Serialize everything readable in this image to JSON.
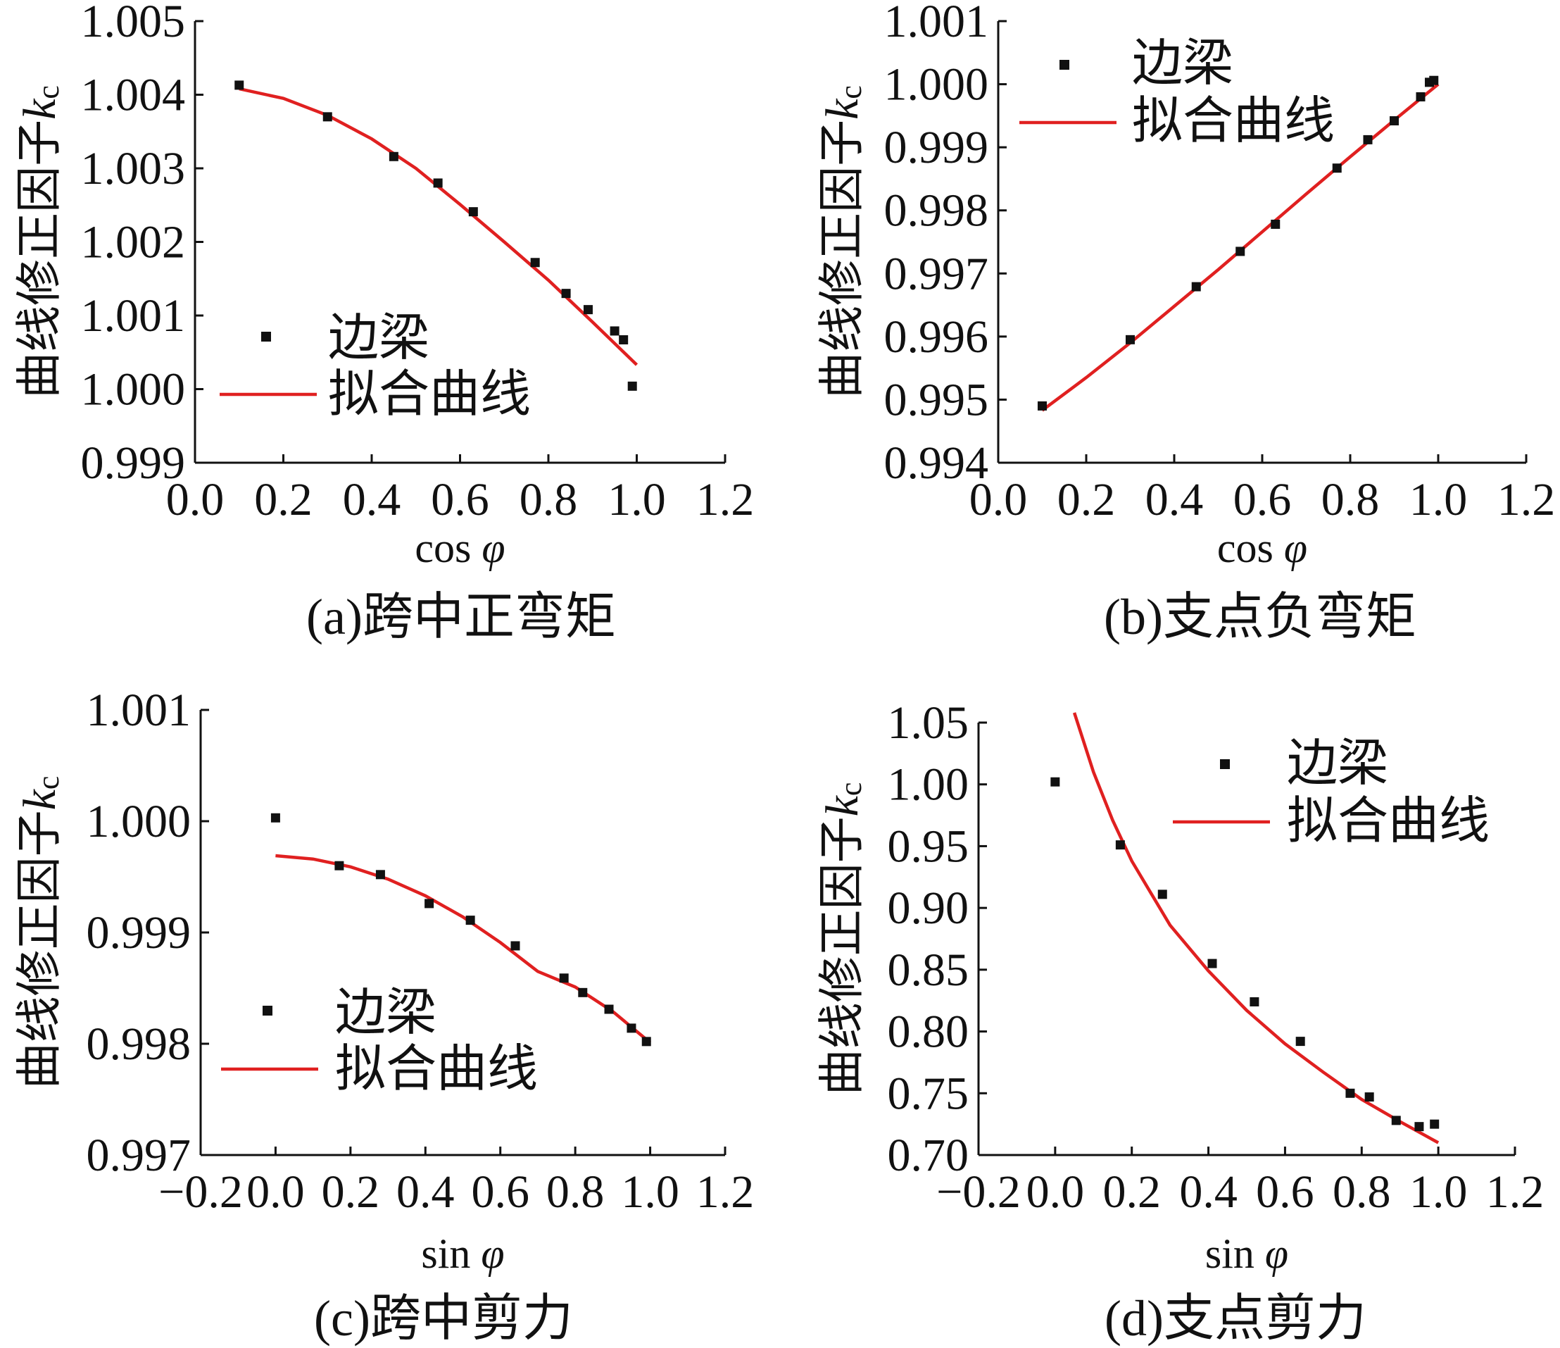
{
  "colors": {
    "marker": "#111111",
    "fit_line": "#e02020",
    "axis": "#111111",
    "background": "#ffffff"
  },
  "chart_data": [
    {
      "type": "scatter",
      "caption": "(a)跨中正弯矩",
      "xlabel": "cos φ",
      "ylabel": "曲线修正因子",
      "ylabel_symbol": "k",
      "ylabel_subscript": "c",
      "xlim": [
        0.0,
        1.2
      ],
      "ylim": [
        0.999,
        1.005
      ],
      "xticks": [
        "0.0",
        "0.2",
        "0.4",
        "0.6",
        "0.8",
        "1.0",
        "1.2"
      ],
      "yticks": [
        "0.999",
        "1.000",
        "1.001",
        "1.002",
        "1.003",
        "1.004",
        "1.005"
      ],
      "legend_position": "bottom-left",
      "series": [
        {
          "name": "边梁",
          "kind": "points",
          "x": [
            0.1,
            0.3,
            0.45,
            0.55,
            0.63,
            0.77,
            0.84,
            0.89,
            0.95,
            0.97,
            0.99
          ],
          "y": [
            1.00413,
            1.0037,
            1.00316,
            1.0028,
            1.00241,
            1.00172,
            1.0013,
            1.00108,
            1.00079,
            1.00067,
            1.00004
          ]
        },
        {
          "name": "拟合曲线",
          "kind": "line",
          "x": [
            0.1,
            0.2,
            0.3,
            0.4,
            0.5,
            0.6,
            0.7,
            0.8,
            0.9,
            1.0
          ],
          "y": [
            1.00408,
            1.00395,
            1.00372,
            1.0034,
            1.003,
            1.00251,
            1.002,
            1.00148,
            1.00091,
            1.00033
          ]
        }
      ]
    },
    {
      "type": "scatter",
      "caption": "(b)支点负弯矩",
      "xlabel": "cos φ",
      "ylabel": "曲线修正因子",
      "ylabel_symbol": "k",
      "ylabel_subscript": "c",
      "xlim": [
        0.0,
        1.2
      ],
      "ylim": [
        0.994,
        1.001
      ],
      "xticks": [
        "0.0",
        "0.2",
        "0.4",
        "0.6",
        "0.8",
        "1.0",
        "1.2"
      ],
      "yticks": [
        "0.994",
        "0.995",
        "0.996",
        "0.997",
        "0.998",
        "0.999",
        "1.000",
        "1.001"
      ],
      "legend_position": "top-left",
      "series": [
        {
          "name": "边梁",
          "kind": "points",
          "x": [
            0.1,
            0.3,
            0.45,
            0.55,
            0.63,
            0.77,
            0.84,
            0.9,
            0.96,
            0.98,
            0.99
          ],
          "y": [
            0.9949,
            0.99595,
            0.99679,
            0.99735,
            0.99778,
            0.99867,
            0.99912,
            0.99942,
            0.9998,
            1.00003,
            1.00006
          ]
        },
        {
          "name": "拟合曲线",
          "kind": "line",
          "x": [
            0.1,
            0.2,
            0.3,
            0.4,
            0.5,
            0.6,
            0.7,
            0.8,
            0.9,
            1.0
          ],
          "y": [
            0.99483,
            0.99535,
            0.9959,
            0.99648,
            0.99706,
            0.99766,
            0.99826,
            0.99885,
            0.99943,
            1.0
          ]
        }
      ]
    },
    {
      "type": "scatter",
      "caption": "(c)跨中剪力",
      "xlabel": "sin φ",
      "ylabel": "曲线修正因子",
      "ylabel_symbol": "k",
      "ylabel_subscript": "c",
      "xlim": [
        -0.2,
        1.2
      ],
      "ylim": [
        0.997,
        1.001
      ],
      "xticks": [
        "−0.2",
        "0.0",
        "0.2",
        "0.4",
        "0.6",
        "0.8",
        "1.0",
        "1.2"
      ],
      "yticks": [
        "0.997",
        "0.998",
        "0.999",
        "1.000",
        "1.001"
      ],
      "legend_position": "bottom-left",
      "series": [
        {
          "name": "边梁",
          "kind": "points",
          "x": [
            0.0,
            0.17,
            0.28,
            0.41,
            0.52,
            0.64,
            0.77,
            0.82,
            0.89,
            0.95,
            0.99
          ],
          "y": [
            1.00003,
            0.9996,
            0.99952,
            0.99926,
            0.99911,
            0.99888,
            0.99859,
            0.99846,
            0.99831,
            0.99814,
            0.99802
          ]
        },
        {
          "name": "拟合曲线",
          "kind": "line",
          "x": [
            0.0,
            0.1,
            0.2,
            0.3,
            0.4,
            0.5,
            0.6,
            0.7,
            0.8,
            0.9,
            1.0
          ],
          "y": [
            0.99969,
            0.99966,
            0.99959,
            0.99948,
            0.99933,
            0.99914,
            0.99891,
            0.99865,
            0.99851,
            0.99829,
            0.99801
          ]
        }
      ]
    },
    {
      "type": "scatter",
      "caption": "(d)支点剪力",
      "xlabel": "sin φ",
      "ylabel": "曲线修正因子",
      "ylabel_symbol": "k",
      "ylabel_subscript": "c",
      "xlim": [
        -0.2,
        1.2
      ],
      "ylim": [
        0.7,
        1.05
      ],
      "xticks": [
        "−0.2",
        "0.0",
        "0.2",
        "0.4",
        "0.6",
        "0.8",
        "1.0",
        "1.2"
      ],
      "yticks": [
        "0.70",
        "0.75",
        "0.80",
        "0.85",
        "0.90",
        "0.95",
        "1.00",
        "1.05"
      ],
      "legend_position": "top-right",
      "series": [
        {
          "name": "边梁",
          "kind": "points",
          "x": [
            0.0,
            0.17,
            0.28,
            0.41,
            0.52,
            0.64,
            0.77,
            0.82,
            0.89,
            0.95,
            0.99
          ],
          "y": [
            1.002,
            0.951,
            0.911,
            0.855,
            0.824,
            0.792,
            0.75,
            0.747,
            0.728,
            0.723,
            0.725
          ]
        },
        {
          "name": "拟合曲线",
          "kind": "line",
          "x": [
            0.05,
            0.1,
            0.15,
            0.2,
            0.3,
            0.4,
            0.5,
            0.6,
            0.7,
            0.8,
            0.9,
            1.0
          ],
          "y": [
            1.058,
            1.01,
            0.971,
            0.938,
            0.886,
            0.849,
            0.817,
            0.79,
            0.767,
            0.745,
            0.727,
            0.71
          ]
        }
      ]
    }
  ]
}
